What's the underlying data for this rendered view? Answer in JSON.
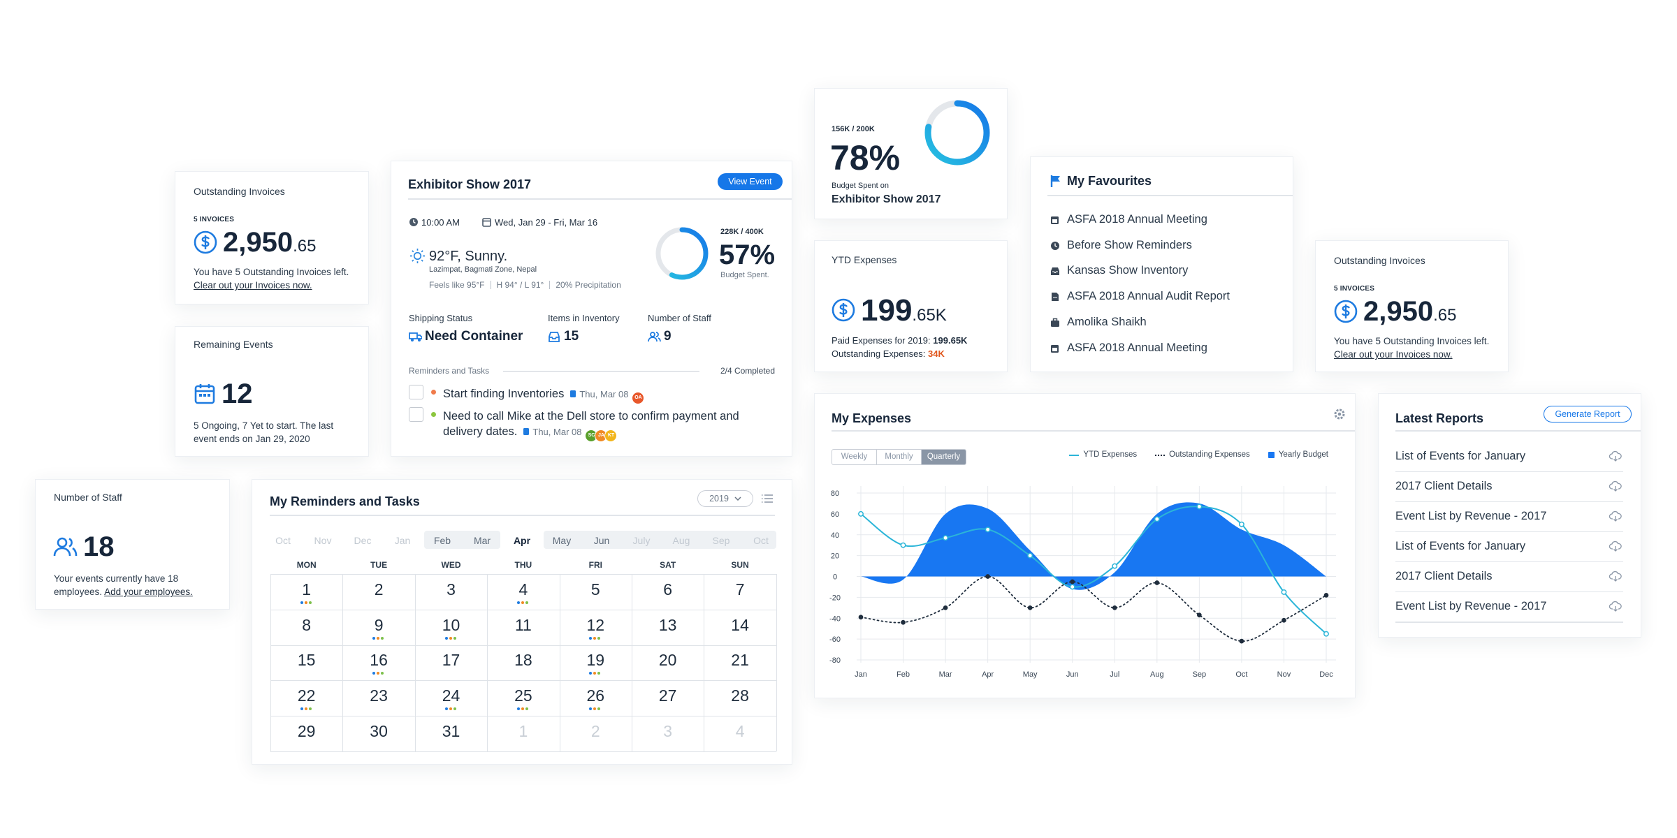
{
  "invoices_left": {
    "title": "Outstanding Invoices",
    "count": "5 INVOICES",
    "amount": "2,950",
    "cents": ".65",
    "text": "You have 5 Outstanding Invoices left.",
    "link": "Clear out your Invoices now."
  },
  "remaining_events": {
    "title": "Remaining Events",
    "count": "12",
    "text": "5 Ongoing, 7 Yet to start. The last event ends on Jan 29, 2020"
  },
  "exhibitor": {
    "title": "Exhibitor Show 2017",
    "button": "View Event",
    "time": "10:00 AM",
    "dates": "Wed, Jan 29 - Fri, Mar 16",
    "weather": "92°F, Sunny.",
    "location": "Lazimpat, Bagmati Zone, Nepal",
    "details": [
      "Feels like 95°F",
      "H 94° / L 91°",
      "20% Precipitation"
    ],
    "budget": {
      "ratio": "228K / 400K",
      "value": 57,
      "label": "57%",
      "caption": "Budget Spent."
    },
    "stats": [
      {
        "label": "Shipping Status",
        "value": "Need Container"
      },
      {
        "label": "Items in Inventory",
        "value": "15"
      },
      {
        "label": "Number of Staff",
        "value": "9"
      }
    ],
    "tasks_title": "Reminders and Tasks",
    "tasks_done": "2/4 Completed",
    "tasks": [
      {
        "text": "Start finding Inventories",
        "date": "Thu, Mar 08",
        "avatars": [
          "OA"
        ]
      },
      {
        "text": "Need to call Mike at the Dell store to confirm payment and delivery dates.",
        "date": "Thu, Mar 08",
        "avatars": [
          "SC",
          "JA",
          "KT"
        ]
      }
    ]
  },
  "staff": {
    "title": "Number of Staff",
    "count": "18",
    "text": "Your events currently have 18 employees.",
    "link": "Add your employees."
  },
  "calendar": {
    "title": "My Reminders and Tasks",
    "year": "2019",
    "months": [
      "Oct",
      "Nov",
      "Dec",
      "Jan",
      "Feb",
      "Mar",
      "Apr",
      "May",
      "Jun",
      "July",
      "Aug",
      "Sep",
      "Oct"
    ],
    "active_month": 6,
    "weekdays": [
      "MON",
      "TUE",
      "WED",
      "THU",
      "FRI",
      "SAT",
      "SUN"
    ],
    "days": [
      1,
      2,
      3,
      4,
      5,
      6,
      7,
      8,
      9,
      10,
      11,
      12,
      13,
      14,
      15,
      16,
      17,
      18,
      19,
      20,
      21,
      22,
      23,
      24,
      25,
      26,
      27,
      28,
      29,
      30,
      31
    ],
    "next_days": [
      1,
      2,
      3,
      4
    ],
    "marked_days": [
      1,
      4,
      9,
      10,
      12,
      16,
      19,
      22,
      24,
      25,
      26
    ]
  },
  "budget": {
    "ratio": "156K / 200K",
    "value": 78,
    "label": "78%",
    "caption": "Budget Spent on",
    "event": "Exhibitor Show 2017"
  },
  "ytd": {
    "title": "YTD Expenses",
    "amount": "199",
    "suffix": ".65K",
    "paid_label": "Paid Expenses for 2019:",
    "paid": "199.65K",
    "outstanding_label": "Outstanding Expenses:",
    "outstanding": "34K"
  },
  "favourites": {
    "title": "My Favourites",
    "items": [
      "ASFA 2018 Annual Meeting",
      "Before Show Reminders",
      "Kansas Show Inventory",
      "ASFA 2018 Annual Audit Report",
      "Amolika Shaikh",
      "ASFA 2018 Annual Meeting"
    ]
  },
  "invoices_right": {
    "title": "Outstanding Invoices",
    "count": "5 INVOICES",
    "amount": "2,950",
    "cents": ".65",
    "text": "You have 5 Outstanding Invoices left.",
    "link": "Clear out your Invoices now."
  },
  "chart_data": {
    "type": "line",
    "title": "My Expenses",
    "tabs": [
      "Weekly",
      "Monthly",
      "Quarterly"
    ],
    "active_tab": 2,
    "x": [
      "Jan",
      "Feb",
      "Mar",
      "Apr",
      "May",
      "Jun",
      "Jul",
      "Aug",
      "Sep",
      "Oct",
      "Nov",
      "Dec"
    ],
    "series": [
      {
        "name": "YTD Expenses",
        "type": "line",
        "color": "#2bb5d8",
        "values": [
          60,
          30,
          37,
          45,
          20,
          -10,
          10,
          55,
          67,
          50,
          -15,
          -55
        ]
      },
      {
        "name": "Outstanding Expenses",
        "type": "line",
        "dashed": true,
        "color": "#1f2d3d",
        "values": [
          -39,
          -44,
          -30,
          0,
          -30,
          -5,
          -30,
          -6,
          -37,
          -62,
          -42,
          -18
        ]
      },
      {
        "name": "Yearly Budget",
        "type": "area",
        "color": "#1877f2",
        "values": [
          0,
          -3,
          60,
          65,
          25,
          -12,
          4,
          60,
          70,
          45,
          30,
          0
        ]
      }
    ],
    "ylim": [
      -80,
      80
    ],
    "yticks": [
      -80,
      -60,
      -40,
      -20,
      0,
      20,
      40,
      60,
      80
    ],
    "grid": true,
    "legend": "top-right"
  },
  "reports": {
    "title": "Latest Reports",
    "button": "Generate Report",
    "items": [
      "List of Events for January",
      "2017 Client Details",
      "Event List by Revenue - 2017",
      "List of Events for January",
      "2017 Client Details",
      "Event List by Revenue - 2017"
    ]
  }
}
